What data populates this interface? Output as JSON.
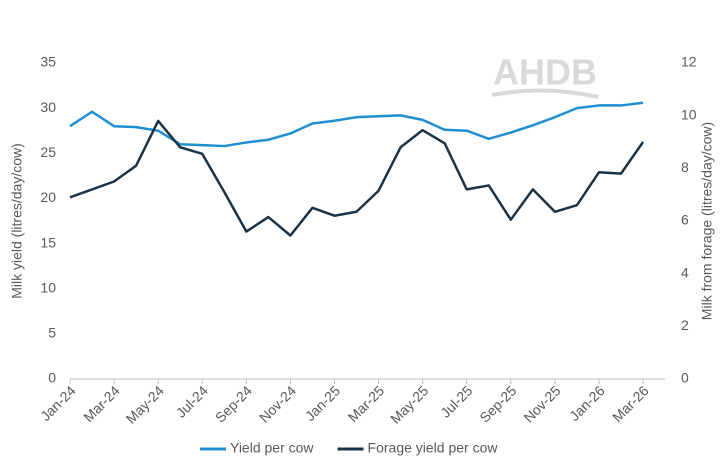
{
  "chart_data": {
    "type": "line",
    "logo": "AHDB",
    "y_label": "Milk yield (litres/day/cow)",
    "y2_label": "Milk from forage (litres/day/cow)",
    "categories": [
      "Jan-24",
      null,
      "Mar-24",
      null,
      "May-24",
      null,
      "Jul-24",
      null,
      "Sep-24",
      null,
      "Nov-24",
      null,
      "Jan-25",
      null,
      "Mar-25",
      null,
      "May-25",
      null,
      "Jul-25",
      null,
      "Sep-25",
      null,
      "Nov-25",
      null,
      "Jan-26",
      null,
      "Mar-26"
    ],
    "series": [
      {
        "name": "Yield per cow",
        "color": "#1f8fd0",
        "values": [
          28.0,
          29.6,
          28.0,
          27.9,
          27.5,
          26.0,
          25.9,
          25.8,
          26.2,
          26.5,
          27.2,
          28.3,
          28.6,
          29.0,
          29.1,
          29.2,
          28.7,
          27.6,
          27.5,
          26.6,
          27.3,
          28.1,
          29.0,
          30.0,
          30.3,
          30.3,
          30.6
        ]
      },
      {
        "name": "Forage yield per cow",
        "color": "#1b3346",
        "axis": "y2",
        "values": [
          6.9,
          7.2,
          7.5,
          8.1,
          9.8,
          8.8,
          8.55,
          7.1,
          5.6,
          6.15,
          5.45,
          6.5,
          6.2,
          6.35,
          7.15,
          8.8,
          9.45,
          8.95,
          7.2,
          7.35,
          6.05,
          7.2,
          6.35,
          6.6,
          7.85,
          7.8,
          9.0
        ]
      }
    ],
    "ylim": [
      0,
      35
    ],
    "yticks": [
      0,
      5,
      10,
      15,
      20,
      25,
      30,
      35
    ],
    "y2lim": [
      0,
      12
    ],
    "y2ticks": [
      0,
      2,
      4,
      6,
      8,
      10,
      12
    ],
    "legend": "bottom"
  }
}
